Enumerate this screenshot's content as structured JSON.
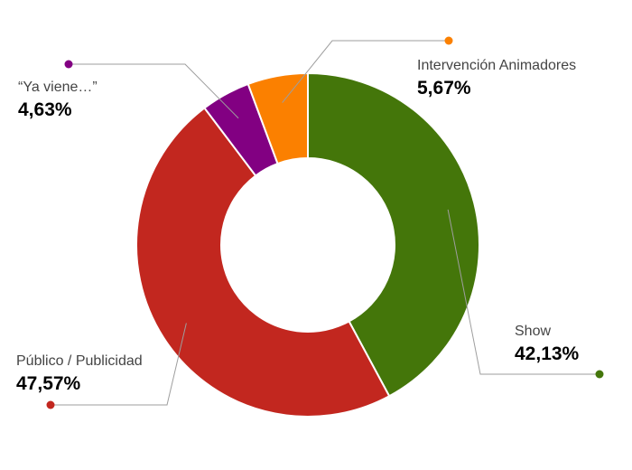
{
  "chart_data": {
    "type": "pie",
    "donut": true,
    "title": "",
    "slices": [
      {
        "label": "Show",
        "value": 42.13,
        "value_label": "42,13%",
        "color": "#44760a"
      },
      {
        "label": "Público / Publicidad",
        "value": 47.57,
        "value_label": "47,57%",
        "color": "#c2271f"
      },
      {
        "label": "“Ya viene…”",
        "value": 4.63,
        "value_label": "4,63%",
        "color": "#820082"
      },
      {
        "label": "Intervención Animadores",
        "value": 5.67,
        "value_label": "5,67%",
        "color": "#fb8000"
      }
    ],
    "legend": "none",
    "start_angle_deg": 0,
    "direction": "clockwise"
  }
}
